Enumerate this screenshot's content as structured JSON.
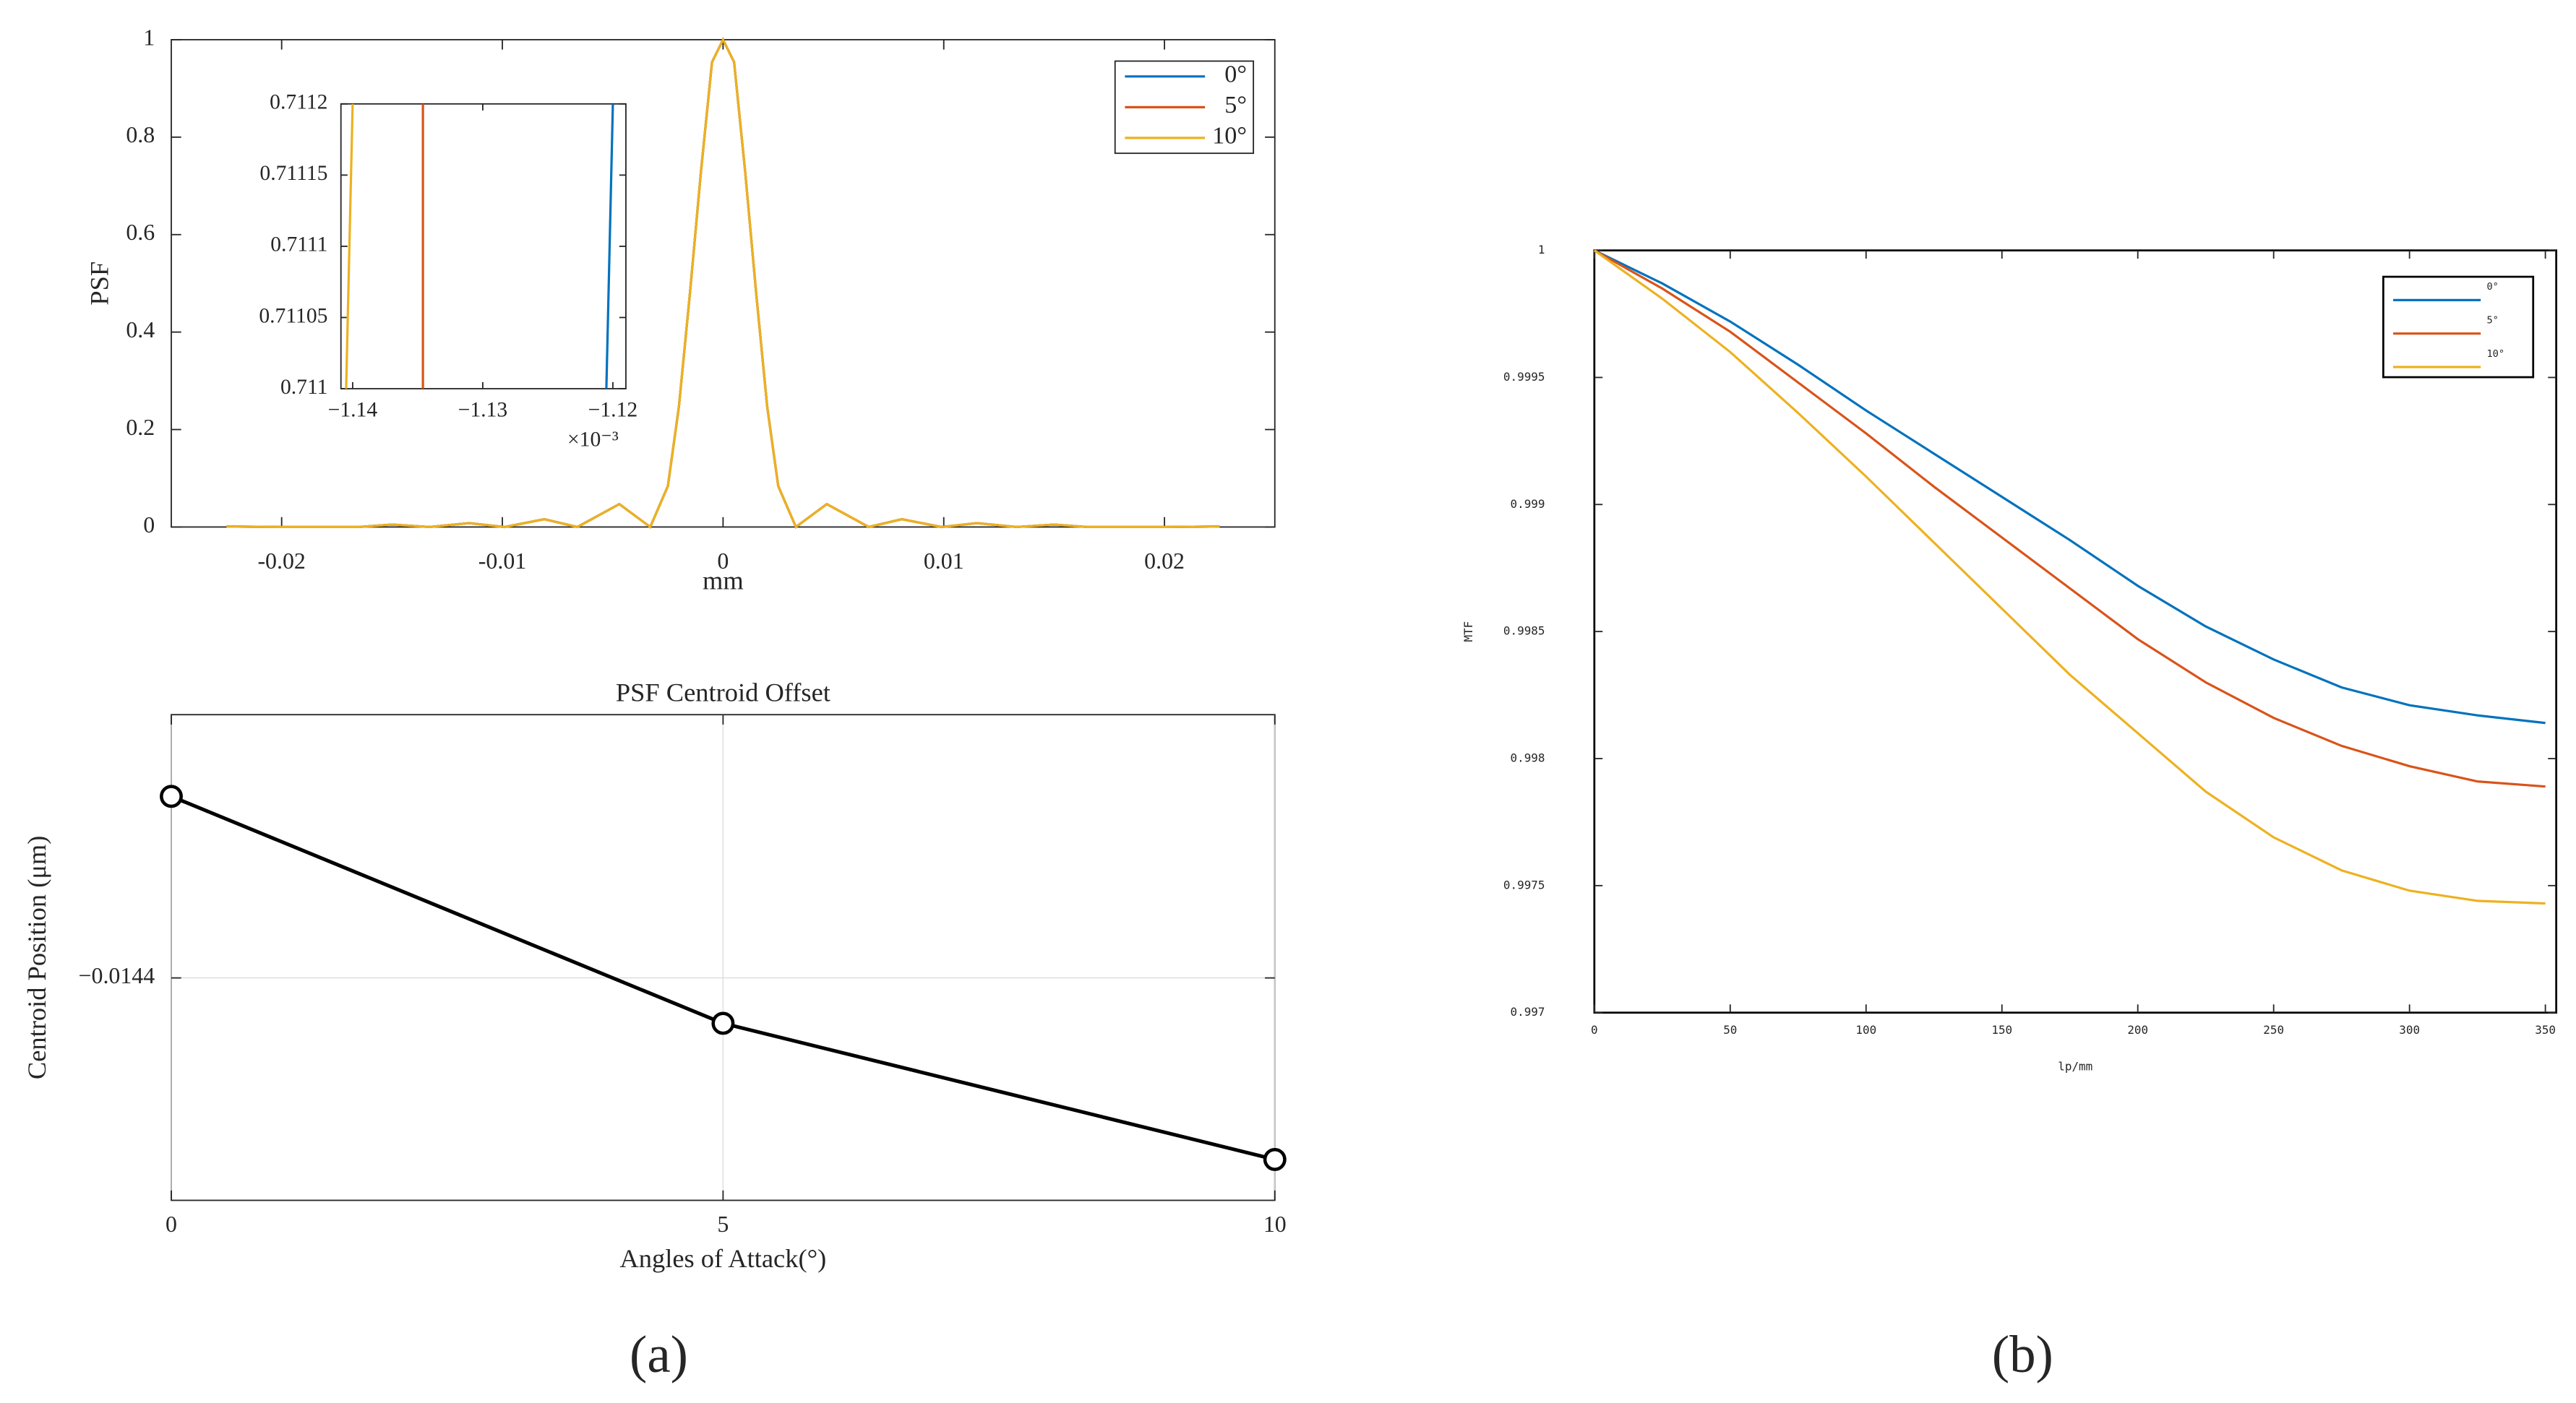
{
  "panel_labels": [
    "(a)",
    "(b)"
  ],
  "chart_data": [
    {
      "type": "line",
      "ylabel": "PSF",
      "xlabel": "mm",
      "x": [
        -0.0225,
        -0.02,
        -0.0165,
        -0.015,
        -0.0133,
        -0.0115,
        -0.0099,
        -0.0081,
        -0.0066,
        -0.0047,
        -0.0033,
        -0.0025,
        -0.002,
        -0.0015,
        -0.001,
        -0.0005,
        0,
        0.0005,
        0.001,
        0.0015,
        0.002,
        0.0025,
        0.0033,
        0.0047,
        0.0066,
        0.0081,
        0.0099,
        0.0115,
        0.0133,
        0.015,
        0.0165,
        0.02,
        0.0225
      ],
      "series": [
        {
          "name": "0°",
          "color": "#0072bd",
          "values": [
            0.001,
            0,
            0,
            0.005,
            0,
            0.008,
            0,
            0.016,
            0,
            0.047,
            0,
            0.084,
            0.247,
            0.48,
            0.73,
            0.954,
            1,
            0.954,
            0.73,
            0.48,
            0.247,
            0.084,
            0,
            0.047,
            0,
            0.016,
            0,
            0.008,
            0,
            0.005,
            0,
            0,
            0.001
          ]
        },
        {
          "name": "5°",
          "color": "#d95319",
          "values": [
            0.001,
            0,
            0,
            0.005,
            0,
            0.008,
            0,
            0.016,
            0,
            0.047,
            0,
            0.084,
            0.247,
            0.48,
            0.73,
            0.954,
            1,
            0.954,
            0.73,
            0.48,
            0.247,
            0.084,
            0,
            0.047,
            0,
            0.016,
            0,
            0.008,
            0,
            0.005,
            0,
            0,
            0.001
          ]
        },
        {
          "name": "10°",
          "color": "#edb120",
          "values": [
            0.001,
            0,
            0,
            0.005,
            0,
            0.008,
            0,
            0.016,
            0,
            0.047,
            0,
            0.084,
            0.247,
            0.48,
            0.73,
            0.954,
            1,
            0.954,
            0.73,
            0.48,
            0.247,
            0.084,
            0,
            0.047,
            0,
            0.016,
            0,
            0.008,
            0,
            0.005,
            0,
            0,
            0.001
          ]
        }
      ],
      "xlim": [
        -0.025,
        0.025
      ],
      "xticks": [
        -0.02,
        -0.01,
        0,
        0.01,
        0.02
      ],
      "ylim": [
        0,
        1
      ],
      "yticks": [
        0,
        0.2,
        0.4,
        0.6,
        0.8,
        1
      ],
      "grid": false,
      "legend": "upper right"
    },
    {
      "type": "line",
      "x_exponent_label": "×10⁻³",
      "series": [
        {
          "color": "#edb120",
          "x": [
            -1.1405,
            -1.14
          ],
          "values": [
            0.711,
            0.7112
          ]
        },
        {
          "color": "#d95319",
          "x": [
            -1.1346,
            -1.1346
          ],
          "values": [
            0.711,
            0.7112
          ]
        },
        {
          "color": "#0072bd",
          "x": [
            -1.1205,
            -1.12
          ],
          "values": [
            0.711,
            0.7112
          ]
        }
      ],
      "xlim": [
        -1.1409,
        -1.119
      ],
      "xticks": [
        {
          "value": -1.14,
          "label": "−1.14"
        },
        {
          "value": -1.13,
          "label": "−1.13"
        },
        {
          "value": -1.12,
          "label": "−1.12"
        }
      ],
      "ylim": [
        0.711,
        0.7112
      ],
      "yticks": [
        0.711,
        0.71105,
        0.7111,
        0.71115,
        0.7112
      ],
      "grid": false
    },
    {
      "type": "line",
      "title": "PSF Centroid Offset",
      "xlabel": "Angles of Attack(°)",
      "ylabel": "Centroid Position (μm)",
      "x": [
        0,
        5,
        10
      ],
      "series": [
        {
          "color": "#000000",
          "values": [
            -0.014,
            -0.0145,
            -0.0148
          ]
        }
      ],
      "markers": true,
      "xlim": [
        0,
        10
      ],
      "xticks": [
        0,
        5,
        10
      ],
      "ylim": [
        -0.01489,
        -0.01382
      ],
      "yticks": [
        {
          "value": -0.0144,
          "label": "−0.0144"
        }
      ],
      "grid": true
    },
    {
      "type": "line",
      "xlabel": "lp/mm",
      "ylabel": "MTF",
      "x": [
        0,
        25,
        50,
        75,
        100,
        125,
        150,
        175,
        200,
        225,
        250,
        275,
        300,
        325,
        350
      ],
      "series": [
        {
          "name": "0°",
          "color": "#0072bd",
          "values": [
            1,
            0.99987,
            0.99972,
            0.99955,
            0.99937,
            0.9992,
            0.99903,
            0.99886,
            0.99868,
            0.99852,
            0.99839,
            0.99828,
            0.99821,
            0.99817,
            0.99814
          ]
        },
        {
          "name": "5°",
          "color": "#d95319",
          "values": [
            1,
            0.99985,
            0.99968,
            0.99948,
            0.99928,
            0.99907,
            0.99887,
            0.99867,
            0.99847,
            0.9983,
            0.99816,
            0.99805,
            0.99797,
            0.99791,
            0.99789
          ]
        },
        {
          "name": "10°",
          "color": "#edb120",
          "values": [
            1,
            0.99981,
            0.9996,
            0.99936,
            0.99911,
            0.99885,
            0.99859,
            0.99833,
            0.9981,
            0.99787,
            0.99769,
            0.99756,
            0.99748,
            0.99744,
            0.99743
          ]
        }
      ],
      "xlim": [
        0,
        354
      ],
      "xticks": [
        0,
        50,
        100,
        150,
        200,
        250,
        300,
        350
      ],
      "ylim": [
        0.997,
        1
      ],
      "yticks": [
        0.997,
        0.9975,
        0.998,
        0.9985,
        0.999,
        0.9995,
        1
      ],
      "grid": false,
      "legend": "upper right"
    }
  ]
}
